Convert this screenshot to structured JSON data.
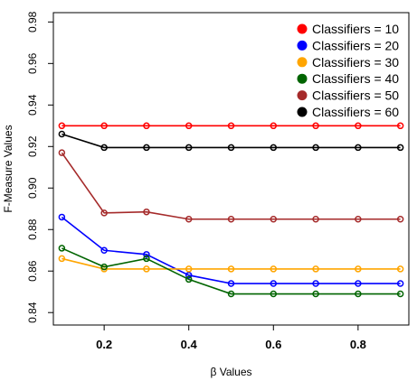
{
  "chart_data": {
    "type": "line",
    "title": "",
    "xlabel": "β Values",
    "ylabel": "F-Measure Values",
    "xlim": [
      0.08,
      0.92
    ],
    "ylim": [
      0.834,
      0.9845
    ],
    "x_ticks": [
      0.2,
      0.4,
      0.6,
      0.8
    ],
    "x_tick_labels": [
      "0.2",
      "0.4",
      "0.6",
      "0.8"
    ],
    "y_ticks": [
      0.84,
      0.86,
      0.88,
      0.9,
      0.92,
      0.94,
      0.96,
      0.98
    ],
    "y_tick_labels": [
      "0.84",
      "0.86",
      "0.88",
      "0.90",
      "0.92",
      "0.94",
      "0.96",
      "0.98"
    ],
    "grid": false,
    "legend_position": "top-right",
    "x": [
      0.1,
      0.2,
      0.3,
      0.4,
      0.5,
      0.6,
      0.7,
      0.8,
      0.9
    ],
    "series": [
      {
        "name": "Classifiers = 10",
        "color": "#ff0000",
        "values": [
          0.93,
          0.93,
          0.93,
          0.93,
          0.93,
          0.93,
          0.93,
          0.93,
          0.93
        ]
      },
      {
        "name": "Classifiers = 20",
        "color": "#0000ff",
        "values": [
          0.886,
          0.87,
          0.868,
          0.858,
          0.854,
          0.854,
          0.854,
          0.854,
          0.854
        ]
      },
      {
        "name": "Classifiers = 30",
        "color": "#ffa500",
        "values": [
          0.866,
          0.861,
          0.861,
          0.861,
          0.861,
          0.861,
          0.861,
          0.861,
          0.861
        ]
      },
      {
        "name": "Classifiers = 40",
        "color": "#006400",
        "values": [
          0.871,
          0.862,
          0.866,
          0.856,
          0.849,
          0.849,
          0.849,
          0.849,
          0.849
        ]
      },
      {
        "name": "Classifiers = 50",
        "color": "#a52a2a",
        "values": [
          0.917,
          0.888,
          0.8885,
          0.885,
          0.885,
          0.885,
          0.885,
          0.885,
          0.885
        ]
      },
      {
        "name": "Classifiers = 60",
        "color": "#000000",
        "values": [
          0.926,
          0.9195,
          0.9195,
          0.9195,
          0.9195,
          0.9195,
          0.9195,
          0.9195,
          0.9195
        ]
      }
    ]
  }
}
